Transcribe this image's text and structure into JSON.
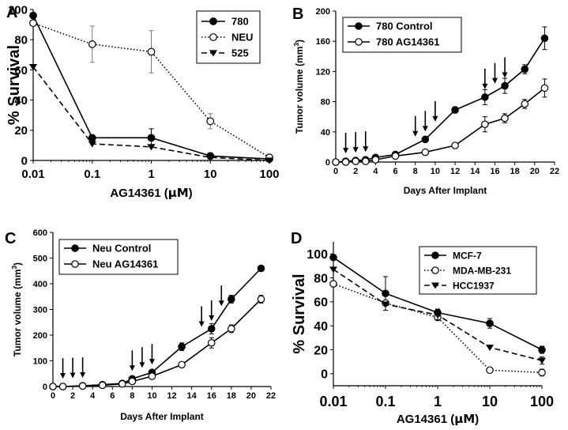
{
  "figure": {
    "description_panels": [
      "A",
      "B",
      "C",
      "D"
    ]
  },
  "chart_data": [
    {
      "panel": "A",
      "type": "line",
      "xscale": "log",
      "x": [
        0.01,
        0.1,
        1,
        10,
        100
      ],
      "xticks": [
        "0.01",
        "0.1",
        "1",
        "10",
        "100"
      ],
      "yticks": [
        "0",
        "20",
        "40",
        "60",
        "80",
        "100"
      ],
      "xlim": [
        0.01,
        100
      ],
      "ylim": [
        0,
        100
      ],
      "xlabel_prefix": "AG14361 (",
      "xlabel_unit": "μM",
      "xlabel_suffix": ")",
      "ylabel": "% Survival",
      "legend_position": "top-right",
      "series": [
        {
          "name": "780",
          "marker": "filled-circle",
          "dash": "solid",
          "values": [
            96,
            15,
            15,
            3,
            1
          ],
          "errors": [
            0,
            0,
            6,
            2,
            0
          ]
        },
        {
          "name": "NEU",
          "marker": "open-circle",
          "dash": "dotted",
          "values": [
            91,
            77,
            72,
            26,
            2
          ],
          "errors": [
            0,
            12,
            14,
            5,
            0
          ]
        },
        {
          "name": "525",
          "marker": "filled-triangle",
          "dash": "dashed",
          "values": [
            62,
            11,
            9,
            2,
            0
          ],
          "errors": [
            0,
            0,
            0,
            0,
            0
          ]
        }
      ]
    },
    {
      "panel": "B",
      "type": "line",
      "xscale": "linear",
      "xlim": [
        0,
        22
      ],
      "ylim": [
        0,
        200
      ],
      "xticks": [
        "0",
        "2",
        "4",
        "6",
        "8",
        "10",
        "12",
        "14",
        "16",
        "18",
        "20",
        "22"
      ],
      "yticks": [
        "0",
        "40",
        "80",
        "120",
        "160",
        "200"
      ],
      "xlabel": "Days After Implant",
      "ylabel_prefix": "Tumor volume (mm",
      "ylabel_sup": "3",
      "ylabel_suffix": ")",
      "legend_position": "top-left",
      "arrow_days": [
        1,
        2,
        3,
        8,
        9,
        10,
        15,
        16,
        17
      ],
      "series": [
        {
          "name": "780 Control",
          "marker": "filled-circle",
          "x": [
            0,
            1,
            2,
            3,
            4,
            6,
            9,
            12,
            15,
            17,
            19,
            21
          ],
          "values": [
            0,
            1,
            2,
            3,
            6,
            10,
            30,
            69,
            86,
            101,
            123,
            164
          ],
          "errors": [
            0,
            0,
            0,
            0,
            0,
            0,
            0,
            4,
            10,
            10,
            6,
            15
          ]
        },
        {
          "name": "780 AG14361",
          "marker": "open-circle",
          "x": [
            0,
            1,
            2,
            3,
            4,
            6,
            9,
            12,
            15,
            17,
            19,
            21
          ],
          "values": [
            0,
            0,
            1,
            1,
            3,
            8,
            13,
            22,
            50,
            58,
            77,
            98
          ],
          "errors": [
            0,
            0,
            0,
            0,
            0,
            0,
            0,
            0,
            10,
            6,
            6,
            12
          ]
        }
      ]
    },
    {
      "panel": "C",
      "type": "line",
      "xscale": "linear",
      "xlim": [
        0,
        22
      ],
      "ylim": [
        0,
        600
      ],
      "xticks": [
        "0",
        "2",
        "4",
        "6",
        "8",
        "10",
        "12",
        "14",
        "16",
        "18",
        "20",
        "22"
      ],
      "yticks": [
        "0",
        "100",
        "200",
        "300",
        "400",
        "500",
        "600"
      ],
      "xlabel": "Days After Implant",
      "ylabel_prefix": "Tumor volume (mm",
      "ylabel_sup": "3",
      "ylabel_suffix": ")",
      "legend_position": "top-left",
      "arrow_days": [
        1,
        2,
        3,
        8,
        9,
        10,
        15,
        16,
        17
      ],
      "series": [
        {
          "name": "Neu Control",
          "marker": "filled-circle",
          "x": [
            0,
            1,
            3,
            5,
            7,
            8,
            10,
            13,
            16,
            18,
            21
          ],
          "values": [
            0,
            0,
            3,
            7,
            12,
            30,
            55,
            155,
            225,
            340,
            460
          ],
          "errors": [
            0,
            0,
            0,
            0,
            0,
            0,
            10,
            15,
            20,
            15,
            10
          ]
        },
        {
          "name": "Neu AG14361",
          "marker": "open-circle",
          "x": [
            0,
            1,
            3,
            5,
            7,
            8,
            10,
            13,
            16,
            18,
            21
          ],
          "values": [
            0,
            0,
            2,
            5,
            10,
            20,
            40,
            85,
            170,
            225,
            340
          ],
          "errors": [
            0,
            0,
            0,
            0,
            0,
            0,
            0,
            0,
            20,
            15,
            15
          ]
        }
      ]
    },
    {
      "panel": "D",
      "type": "line",
      "xscale": "log",
      "x": [
        0.01,
        0.1,
        1,
        10,
        100
      ],
      "xticks": [
        "0.01",
        "0.1",
        "1",
        "10",
        "100"
      ],
      "yticks": [
        "0",
        "20",
        "40",
        "60",
        "80",
        "100"
      ],
      "xlim": [
        0.01,
        100
      ],
      "ylim": [
        -10,
        110
      ],
      "xlabel_prefix": "AG14361 (",
      "xlabel_unit": "μM",
      "xlabel_suffix": ")",
      "ylabel": "% Survival",
      "legend_position": "top-right",
      "series": [
        {
          "name": "MCF-7",
          "marker": "filled-circle",
          "dash": "solid",
          "values": [
            97,
            67,
            51,
            42,
            20
          ],
          "errors": [
            0,
            14,
            3,
            4,
            3
          ]
        },
        {
          "name": "MDA-MB-231",
          "marker": "open-circle",
          "dash": "dotted",
          "values": [
            75,
            59,
            47,
            3,
            1
          ],
          "errors": [
            0,
            0,
            0,
            0,
            3
          ]
        },
        {
          "name": "HCC1937",
          "marker": "filled-triangle",
          "dash": "dashed",
          "values": [
            87,
            58,
            49,
            22,
            11
          ],
          "errors": [
            0,
            0,
            4,
            0,
            3
          ]
        }
      ]
    }
  ]
}
